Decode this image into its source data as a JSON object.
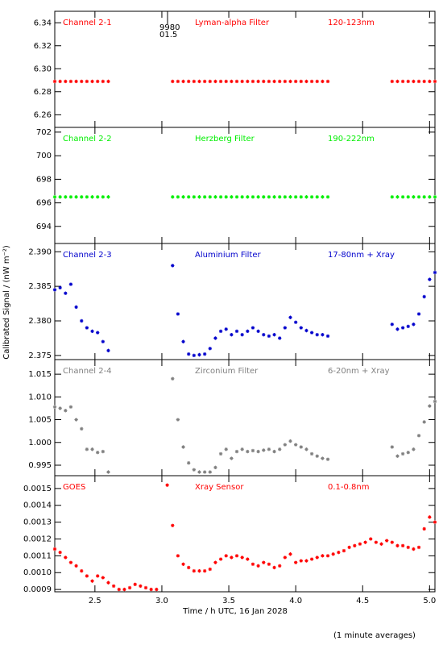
{
  "chart_data": {
    "type": "scatter",
    "ylabel": "Calibrated Signal / (nW m⁻²)",
    "xlabel": "Time / h UTC, 16 Jan 2028",
    "footnote": "(1 minute averages)",
    "xlim": [
      2.2,
      5.04
    ],
    "xticks": [
      2.5,
      {
        "value": 3,
        "label": "3.0"
      },
      3.5,
      {
        "value": 4,
        "label": "4.0"
      },
      4.5,
      {
        "value": 5,
        "label": "5.0"
      }
    ],
    "x": [
      2.2,
      2.24,
      2.28,
      2.32,
      2.36,
      2.4,
      2.44,
      2.48,
      2.52,
      2.56,
      2.6,
      2.64,
      2.68,
      2.72,
      2.76,
      2.8,
      2.84,
      2.88,
      2.92,
      2.96,
      3,
      3.04,
      3.08,
      3.12,
      3.16,
      3.2,
      3.24,
      3.28,
      3.32,
      3.36,
      3.4,
      3.44,
      3.48,
      3.52,
      3.56,
      3.6,
      3.64,
      3.68,
      3.72,
      3.76,
      3.8,
      3.84,
      3.88,
      3.92,
      3.96,
      4,
      4.04,
      4.08,
      4.12,
      4.16,
      4.2,
      4.24,
      4.28,
      4.32,
      4.36,
      4.4,
      4.44,
      4.48,
      4.52,
      4.56,
      4.6,
      4.64,
      4.68,
      4.72,
      4.76,
      4.8,
      4.84,
      4.88,
      4.92,
      4.96,
      5,
      5.04
    ],
    "panels": [
      {
        "texts": [
          "Channel 2-1",
          "Lyman-alpha Filter",
          "120-123nm"
        ],
        "annotations": [
          "9980",
          "01.5"
        ],
        "color": "#ff0000",
        "ylim": [
          6.249,
          6.35
        ],
        "yticks": [
          6.26,
          6.28,
          {
            "value": 6.3,
            "label": "6.30"
          },
          6.32,
          6.34
        ],
        "values": [
          6.289,
          6.289,
          6.289,
          6.289,
          6.289,
          6.289,
          6.289,
          6.289,
          6.289,
          6.289,
          6.289,
          null,
          null,
          null,
          null,
          null,
          null,
          null,
          null,
          null,
          null,
          null,
          6.289,
          6.289,
          6.289,
          6.289,
          6.289,
          6.289,
          6.289,
          6.289,
          6.289,
          6.289,
          6.289,
          6.289,
          6.289,
          6.289,
          6.289,
          6.289,
          6.289,
          6.289,
          6.289,
          6.289,
          6.289,
          6.289,
          6.289,
          6.289,
          6.289,
          6.289,
          6.289,
          6.289,
          6.289,
          6.289,
          null,
          null,
          null,
          null,
          null,
          null,
          null,
          null,
          null,
          null,
          null,
          6.289,
          6.289,
          6.289,
          6.289,
          6.289,
          6.289,
          6.289,
          6.289,
          6.289
        ]
      },
      {
        "texts": [
          "Channel 2-2",
          "Herzberg Filter",
          "190-222nm"
        ],
        "color": "#00ee00",
        "ylim": [
          692.55,
          702.4
        ],
        "yticks": [
          694,
          696,
          698,
          700,
          702
        ],
        "values": [
          696.5,
          696.5,
          696.5,
          696.5,
          696.5,
          696.5,
          696.5,
          696.5,
          696.5,
          696.5,
          696.5,
          null,
          null,
          null,
          null,
          null,
          null,
          null,
          null,
          null,
          null,
          null,
          696.5,
          696.5,
          696.5,
          696.5,
          696.5,
          696.5,
          696.5,
          696.5,
          696.5,
          696.5,
          696.5,
          696.5,
          696.5,
          696.5,
          696.5,
          696.5,
          696.5,
          696.5,
          696.5,
          696.5,
          696.5,
          696.5,
          696.5,
          696.5,
          696.5,
          696.5,
          696.5,
          696.5,
          696.5,
          696.5,
          null,
          null,
          null,
          null,
          null,
          null,
          null,
          null,
          null,
          null,
          null,
          696.5,
          696.5,
          696.5,
          696.5,
          696.5,
          696.5,
          696.5,
          696.5,
          696.5
        ]
      },
      {
        "texts": [
          "Channel 2-3",
          "Aluminium Filter",
          "17-80nm + Xray"
        ],
        "color": "#0000cc",
        "ylim": [
          2.3744,
          2.3912
        ],
        "yticks": [
          2.375,
          {
            "value": 2.38,
            "label": "2.380"
          },
          2.385,
          {
            "value": 2.39,
            "label": "2.390"
          }
        ],
        "values": [
          2.3845,
          2.3848,
          2.384,
          2.3853,
          2.382,
          2.38,
          2.379,
          2.3785,
          2.3783,
          2.377,
          2.3757,
          null,
          null,
          null,
          null,
          null,
          null,
          null,
          null,
          null,
          null,
          null,
          2.388,
          2.381,
          2.377,
          2.3752,
          2.375,
          2.3751,
          2.3752,
          2.376,
          2.3775,
          2.3785,
          2.3788,
          2.378,
          2.3785,
          2.378,
          2.3785,
          2.379,
          2.3785,
          2.378,
          2.3778,
          2.378,
          2.3775,
          2.379,
          2.3805,
          2.3798,
          2.379,
          2.3786,
          2.3783,
          2.378,
          2.378,
          2.3778,
          null,
          null,
          null,
          null,
          null,
          null,
          null,
          null,
          null,
          null,
          null,
          2.3795,
          2.3788,
          2.379,
          2.3792,
          2.3795,
          2.381,
          2.3835,
          2.386,
          2.387
        ]
      },
      {
        "texts": [
          "Channel 2-4",
          "Zirconium Filter",
          "6-20nm + Xray"
        ],
        "color": "#808080",
        "ylim": [
          0.9927,
          1.0182
        ],
        "yticks": [
          0.995,
          {
            "value": 1,
            "label": "1.000"
          },
          1.005,
          {
            "value": 1.01,
            "label": "1.010"
          },
          1.015
        ],
        "values": [
          1.0078,
          1.0075,
          1.007,
          1.0078,
          1.005,
          1.003,
          0.9985,
          0.9985,
          0.9978,
          0.998,
          0.9935,
          null,
          null,
          null,
          null,
          null,
          null,
          null,
          null,
          null,
          null,
          null,
          1.014,
          1.005,
          0.999,
          0.9955,
          0.994,
          0.9935,
          0.9935,
          0.9935,
          0.9945,
          0.9975,
          0.9985,
          0.9965,
          0.998,
          0.9985,
          0.998,
          0.9982,
          0.998,
          0.9983,
          0.9985,
          0.998,
          0.9985,
          0.9995,
          1.0003,
          0.9995,
          0.999,
          0.9985,
          0.9975,
          0.997,
          0.9965,
          0.9963,
          null,
          null,
          null,
          null,
          null,
          null,
          null,
          null,
          null,
          null,
          null,
          0.999,
          0.997,
          0.9975,
          0.9978,
          0.9985,
          1.0015,
          1.0045,
          1.008,
          1.009
        ]
      },
      {
        "texts": [
          "GOES",
          "Xray Sensor",
          "0.1-0.8nm"
        ],
        "color": "#ff0000",
        "ylim": [
          0.000886,
          0.001576
        ],
        "yticks": [
          0.0009,
          {
            "value": 0.001,
            "label": "0.0010"
          },
          0.0011,
          0.0012,
          0.0013,
          0.0014,
          0.0015
        ],
        "values": [
          0.00114,
          0.00112,
          0.00109,
          0.00106,
          0.00104,
          0.00101,
          0.00098,
          0.00095,
          0.00098,
          0.00097,
          0.00094,
          0.00092,
          0.0009,
          0.0009,
          0.00091,
          0.00093,
          0.00092,
          0.00091,
          0.0009,
          0.0009,
          null,
          0.00152,
          0.00128,
          0.0011,
          0.00105,
          0.00103,
          0.00101,
          0.00101,
          0.00101,
          0.00102,
          0.00106,
          0.00108,
          0.0011,
          0.00109,
          0.0011,
          0.00109,
          0.00108,
          0.00105,
          0.00104,
          0.00106,
          0.00105,
          0.00103,
          0.00104,
          0.00109,
          0.00111,
          0.00106,
          0.00107,
          0.00107,
          0.00108,
          0.00109,
          0.0011,
          0.0011,
          0.00111,
          0.00112,
          0.00113,
          0.00115,
          0.00116,
          0.00117,
          0.00118,
          0.0012,
          0.00118,
          0.00117,
          0.00119,
          0.00118,
          0.00116,
          0.00116,
          0.00115,
          0.00114,
          0.00115,
          0.00126,
          0.00133,
          0.0013
        ]
      }
    ]
  }
}
